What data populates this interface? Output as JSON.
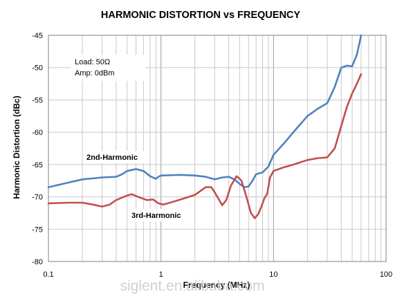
{
  "chart_data": {
    "type": "line",
    "title": "HARMONIC DISTORTION vs FREQUENCY",
    "xlabel": "Frequency (MHz)",
    "ylabel": "Harmonic Distortion (dBc)",
    "x_scale": "log",
    "xlim": [
      0.1,
      100
    ],
    "ylim": [
      -80,
      -45
    ],
    "x_ticks": [
      "0.1",
      "1",
      "10",
      "100"
    ],
    "y_ticks": [
      "-45",
      "-50",
      "-55",
      "-60",
      "-65",
      "-70",
      "-75",
      "-80"
    ],
    "grid": true,
    "annotations": {
      "load": "Load: 50Ω",
      "amp": "Amp: 0dBm"
    },
    "watermark": "siglent.en.alibaba.com",
    "series": [
      {
        "name": "2nd-Harmonic",
        "color": "#4f81bd",
        "points": [
          [
            0.1,
            -68.5
          ],
          [
            0.15,
            -67.8
          ],
          [
            0.2,
            -67.3
          ],
          [
            0.3,
            -67.0
          ],
          [
            0.4,
            -66.9
          ],
          [
            0.45,
            -66.5
          ],
          [
            0.5,
            -66.0
          ],
          [
            0.6,
            -65.7
          ],
          [
            0.7,
            -66.0
          ],
          [
            0.8,
            -66.8
          ],
          [
            0.9,
            -67.2
          ],
          [
            0.95,
            -66.9
          ],
          [
            1.0,
            -66.7
          ],
          [
            1.5,
            -66.6
          ],
          [
            2.0,
            -66.7
          ],
          [
            2.5,
            -66.9
          ],
          [
            3.0,
            -67.3
          ],
          [
            3.5,
            -67.0
          ],
          [
            4.0,
            -66.9
          ],
          [
            4.5,
            -67.3
          ],
          [
            5.0,
            -68.0
          ],
          [
            5.5,
            -68.5
          ],
          [
            6.0,
            -68.4
          ],
          [
            6.5,
            -67.5
          ],
          [
            7.0,
            -66.5
          ],
          [
            8.0,
            -66.2
          ],
          [
            9.0,
            -65.3
          ],
          [
            10.0,
            -63.5
          ],
          [
            12.0,
            -62.0
          ],
          [
            15.0,
            -60.0
          ],
          [
            20.0,
            -57.5
          ],
          [
            25.0,
            -56.3
          ],
          [
            30.0,
            -55.5
          ],
          [
            35.0,
            -53.0
          ],
          [
            40.0,
            -50.0
          ],
          [
            45.0,
            -49.7
          ],
          [
            50.0,
            -49.8
          ],
          [
            55.0,
            -48.0
          ],
          [
            60.0,
            -45.0
          ]
        ]
      },
      {
        "name": "3rd-Harmonic",
        "color": "#c0504d",
        "points": [
          [
            0.1,
            -71.0
          ],
          [
            0.15,
            -70.9
          ],
          [
            0.2,
            -70.9
          ],
          [
            0.25,
            -71.2
          ],
          [
            0.3,
            -71.5
          ],
          [
            0.35,
            -71.2
          ],
          [
            0.4,
            -70.5
          ],
          [
            0.5,
            -69.8
          ],
          [
            0.55,
            -69.6
          ],
          [
            0.65,
            -70.1
          ],
          [
            0.75,
            -70.5
          ],
          [
            0.85,
            -70.4
          ],
          [
            0.95,
            -71.0
          ],
          [
            1.05,
            -71.2
          ],
          [
            1.5,
            -70.4
          ],
          [
            2.0,
            -69.7
          ],
          [
            2.5,
            -68.5
          ],
          [
            2.8,
            -68.5
          ],
          [
            3.0,
            -69.3
          ],
          [
            3.5,
            -71.3
          ],
          [
            3.8,
            -70.5
          ],
          [
            4.2,
            -68.2
          ],
          [
            4.7,
            -66.8
          ],
          [
            5.2,
            -67.5
          ],
          [
            5.7,
            -69.8
          ],
          [
            6.3,
            -72.5
          ],
          [
            6.8,
            -73.3
          ],
          [
            7.3,
            -72.7
          ],
          [
            7.8,
            -71.5
          ],
          [
            8.3,
            -70.2
          ],
          [
            8.8,
            -69.5
          ],
          [
            9.3,
            -67.0
          ],
          [
            10.0,
            -66.0
          ],
          [
            12.0,
            -65.5
          ],
          [
            15.0,
            -65.0
          ],
          [
            20.0,
            -64.3
          ],
          [
            25.0,
            -64.0
          ],
          [
            30.0,
            -63.9
          ],
          [
            35.0,
            -62.5
          ],
          [
            40.0,
            -59.0
          ],
          [
            45.0,
            -56.0
          ],
          [
            50.0,
            -54.0
          ],
          [
            55.0,
            -52.5
          ],
          [
            60.0,
            -51.0
          ]
        ]
      }
    ]
  }
}
